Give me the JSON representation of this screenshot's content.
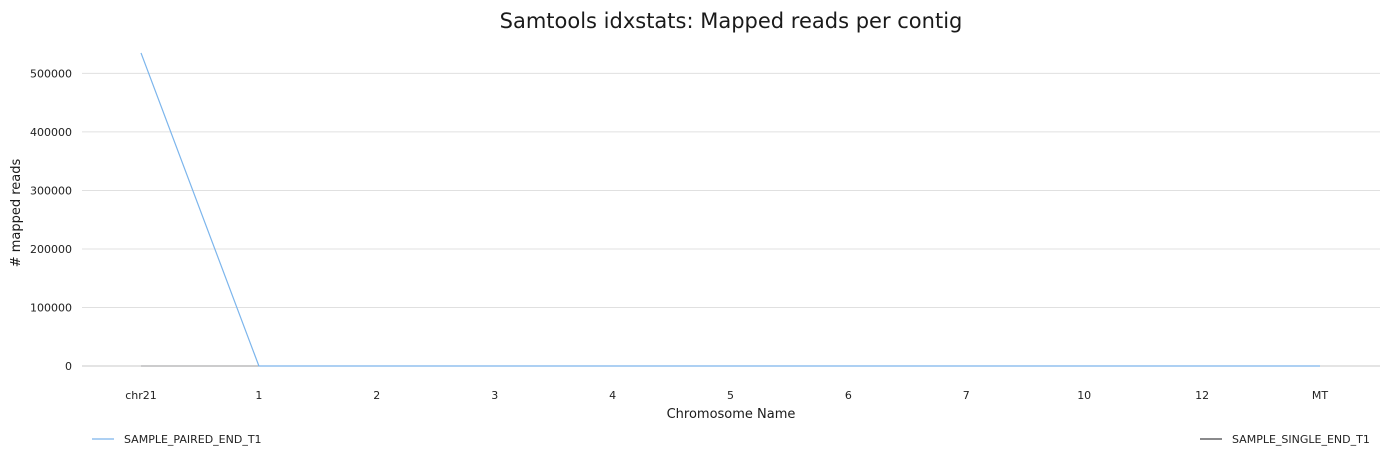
{
  "chart_data": {
    "type": "line",
    "title": "Samtools idxstats: Mapped reads per contig",
    "xlabel": "Chromosome Name",
    "ylabel": "# mapped reads",
    "categories": [
      "chr21",
      "1",
      "2",
      "3",
      "4",
      "5",
      "6",
      "7",
      "10",
      "12",
      "MT"
    ],
    "ylim": [
      0,
      540000
    ],
    "yticks": [
      0,
      100000,
      200000,
      300000,
      400000,
      500000
    ],
    "grid": true,
    "legend_placement": "bottom",
    "series": [
      {
        "name": "SAMPLE_PAIRED_END_T1",
        "color": "#7cb5ec",
        "values": [
          535000,
          0,
          0,
          0,
          0,
          0,
          0,
          0,
          0,
          0,
          0
        ]
      },
      {
        "name": "SAMPLE_SINGLE_END_T1",
        "color": "#434348",
        "values": [
          0,
          0,
          0,
          0,
          0,
          0,
          0,
          0,
          0,
          0,
          0
        ]
      }
    ]
  }
}
